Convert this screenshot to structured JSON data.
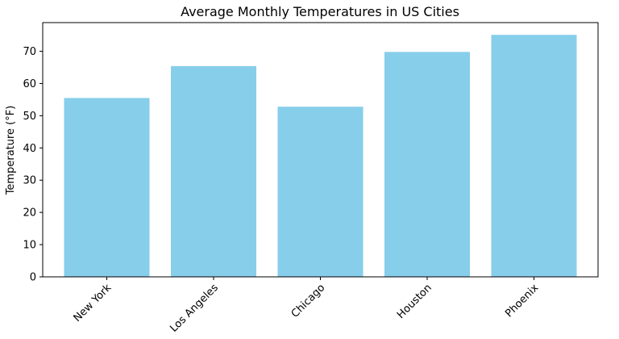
{
  "chart_data": {
    "type": "bar",
    "title": "Average Monthly Temperatures in US Cities",
    "xlabel": "",
    "ylabel": "Temperature (°F)",
    "categories": [
      "New York",
      "Los Angeles",
      "Chicago",
      "Houston",
      "Phoenix"
    ],
    "values": [
      55.5,
      65.4,
      52.8,
      69.8,
      75.1
    ],
    "ylim": [
      0,
      78.9
    ],
    "yticks": [
      0,
      10,
      20,
      30,
      40,
      50,
      60,
      70
    ],
    "grid": false,
    "bar_color": "#87ceeb"
  }
}
